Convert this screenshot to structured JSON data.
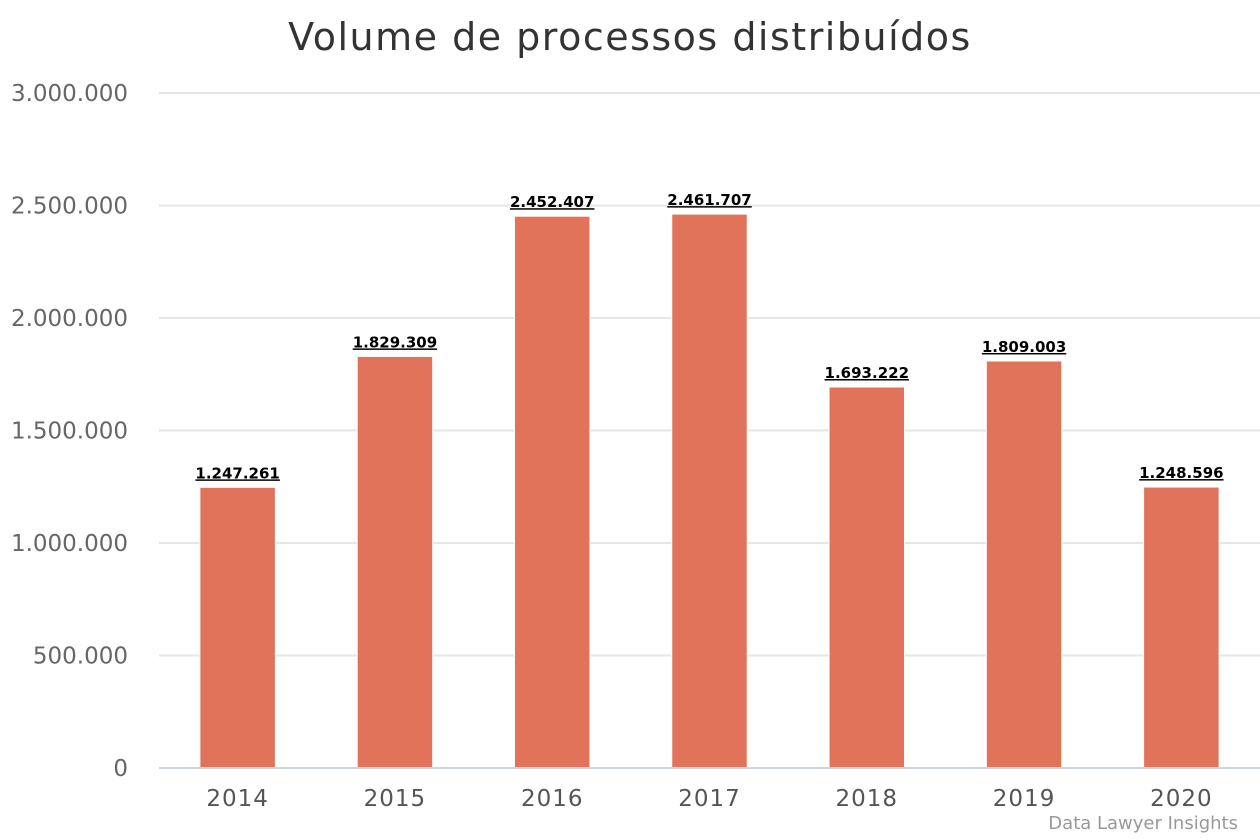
{
  "chart_data": {
    "type": "bar",
    "title": "Volume de processos distribuídos",
    "xlabel": "",
    "ylabel": "",
    "categories": [
      "2014",
      "2015",
      "2016",
      "2017",
      "2018",
      "2019",
      "2020"
    ],
    "values": [
      1247261,
      1829309,
      2452407,
      2461707,
      1693222,
      1809003,
      1248596
    ],
    "value_labels": [
      "1.247.261",
      "1.829.309",
      "2.452.407",
      "2.461.707",
      "1.693.222",
      "1.809.003",
      "1.248.596"
    ],
    "ylim": [
      0,
      3000000
    ],
    "yticks": [
      0,
      500000,
      1000000,
      1500000,
      2000000,
      2500000,
      3000000
    ],
    "ytick_labels": [
      "0",
      "500.000",
      "1.000.000",
      "1.500.000",
      "2.000.000",
      "2.500.000",
      "3.000.000"
    ],
    "grid": true,
    "legend": "none",
    "bar_color": "#e07359",
    "credit": "Data Lawyer Insights"
  }
}
